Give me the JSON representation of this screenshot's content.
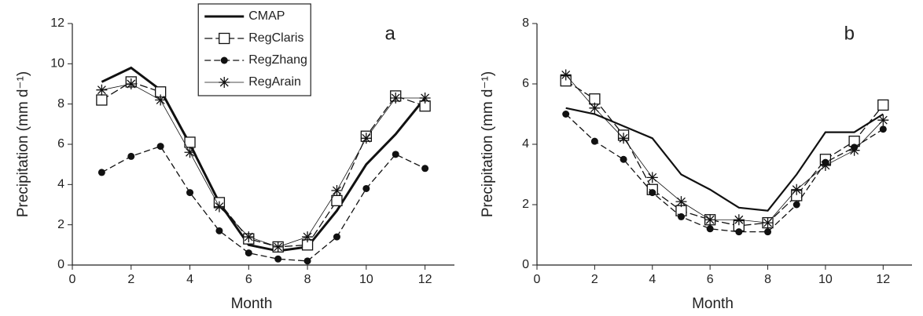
{
  "chart_data": [
    {
      "type": "line",
      "label": "a",
      "xlabel": "Month",
      "ylabel": "Precipitation (mm d⁻¹)",
      "x": [
        1,
        2,
        3,
        4,
        5,
        6,
        7,
        8,
        9,
        10,
        11,
        12
      ],
      "xlim": [
        0,
        13
      ],
      "xticks": [
        0,
        2,
        4,
        6,
        8,
        10,
        12
      ],
      "ylim": [
        0,
        12
      ],
      "yticks": [
        0,
        2,
        4,
        6,
        8,
        10,
        12
      ],
      "legend": "top-left",
      "series": [
        {
          "name": "CMAP",
          "color": "#111111",
          "linewidth": 3,
          "dash": "none",
          "marker": "none",
          "values": [
            9.1,
            9.8,
            8.7,
            6.0,
            3.1,
            1.0,
            0.7,
            0.9,
            2.7,
            5.0,
            6.5,
            8.3
          ]
        },
        {
          "name": "RegClaris",
          "color": "#111111",
          "linewidth": 1.3,
          "dash": "10,4",
          "marker": "square",
          "values": [
            8.2,
            9.1,
            8.6,
            6.1,
            3.1,
            1.3,
            0.9,
            1.0,
            3.2,
            6.4,
            8.4,
            7.9
          ]
        },
        {
          "name": "RegZhang",
          "color": "#111111",
          "linewidth": 1.3,
          "dash": "8,4",
          "marker": "circle",
          "values": [
            4.6,
            5.4,
            5.9,
            3.6,
            1.7,
            0.6,
            0.3,
            0.2,
            1.4,
            3.8,
            5.5,
            4.8
          ]
        },
        {
          "name": "RegArain",
          "color": "#111111",
          "linewidth": 0.8,
          "dash": "none",
          "marker": "asterisk",
          "values": [
            8.7,
            9.0,
            8.2,
            5.6,
            2.9,
            1.4,
            0.9,
            1.4,
            3.7,
            6.3,
            8.3,
            8.3
          ]
        }
      ]
    },
    {
      "type": "line",
      "label": "b",
      "xlabel": "Month",
      "ylabel": "Precipitation (mm d⁻¹)",
      "x": [
        1,
        2,
        3,
        4,
        5,
        6,
        7,
        8,
        9,
        10,
        11,
        12
      ],
      "xlim": [
        0,
        13
      ],
      "xticks": [
        0,
        2,
        4,
        6,
        8,
        10,
        12
      ],
      "ylim": [
        0,
        8
      ],
      "yticks": [
        0,
        2,
        4,
        6,
        8
      ],
      "series": [
        {
          "color": "#111111",
          "linewidth": 2.2,
          "dash": "none",
          "marker": "none",
          "values": [
            5.2,
            5.0,
            4.6,
            4.2,
            3.0,
            2.5,
            1.9,
            1.8,
            3.0,
            4.4,
            4.4,
            5.0
          ]
        },
        {
          "color": "#111111",
          "linewidth": 1.3,
          "dash": "10,4",
          "marker": "square",
          "values": [
            6.1,
            5.5,
            4.3,
            2.5,
            1.8,
            1.5,
            1.3,
            1.4,
            2.3,
            3.5,
            4.1,
            5.3
          ]
        },
        {
          "color": "#111111",
          "linewidth": 1.3,
          "dash": "8,4",
          "marker": "circle",
          "values": [
            5.0,
            4.1,
            3.5,
            2.4,
            1.6,
            1.2,
            1.1,
            1.1,
            2.0,
            3.4,
            3.9,
            4.5
          ]
        },
        {
          "color": "#111111",
          "linewidth": 0.8,
          "dash": "none",
          "marker": "asterisk",
          "values": [
            6.3,
            5.2,
            4.2,
            2.9,
            2.1,
            1.5,
            1.5,
            1.4,
            2.5,
            3.3,
            3.8,
            4.8
          ]
        }
      ]
    }
  ]
}
